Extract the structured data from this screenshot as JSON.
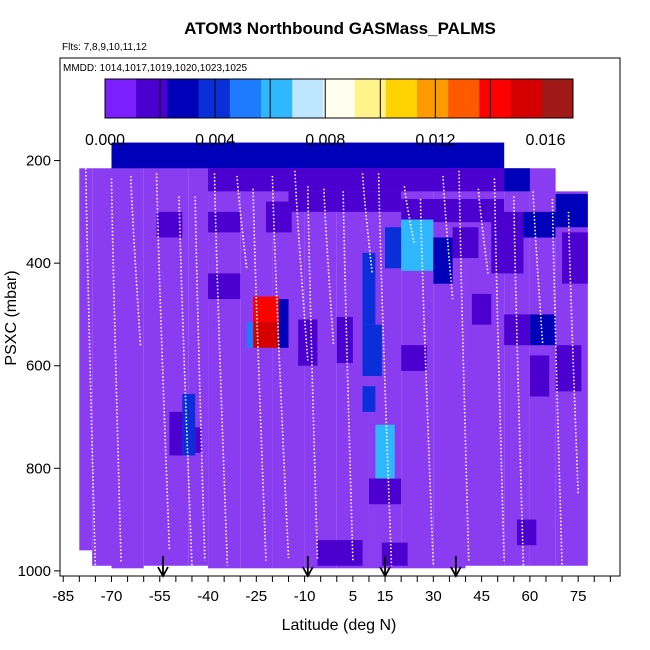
{
  "chart_data": {
    "type": "heatmap",
    "title": "ATOM3 Northbound GASMass_PALMS",
    "flights_note": "Flts: 7,8,9,10,11,12",
    "dates_note": "MMDD: 1014,1017,1019,1020,1023,1025",
    "xlabel": "Latitude (deg N)",
    "ylabel": "PSXC (mbar)",
    "xlim": [
      -86,
      88
    ],
    "ylim_reversed": [
      1010,
      0
    ],
    "x_ticks": [
      "-85",
      "-70",
      "-55",
      "-40",
      "-25",
      "-10",
      "5",
      "15",
      "30",
      "45",
      "60",
      "75"
    ],
    "y_ticks": [
      "200",
      "400",
      "600",
      "800",
      "1000"
    ],
    "colorbar": {
      "range": [
        0,
        0.017
      ],
      "tick_labels": [
        "0.000",
        "0.004",
        "0.008",
        "0.012",
        "0.016"
      ],
      "colors": [
        "#7B1FFF",
        "#4B00D0",
        "#0000B8",
        "#0A2FD8",
        "#1E7BFF",
        "#2FB8FF",
        "#BFE6FF",
        "#FFFFF0",
        "#FFF38A",
        "#FFD200",
        "#FF9A00",
        "#FF5A00",
        "#FF0000",
        "#D40000",
        "#A01818"
      ]
    },
    "low_values_color": "#8A3CF0",
    "arrow_latitudes": [
      -54,
      -9,
      15,
      37
    ],
    "cell_size": {
      "lat_deg": 3.5,
      "pressure_mbar": 25
    },
    "columns": [
      {
        "lat": [
          -80,
          -76
        ],
        "p": [
          215,
          960
        ]
      },
      {
        "lat": [
          -76,
          -70
        ],
        "p": [
          215,
          990
        ]
      },
      {
        "lat": [
          -70,
          -60
        ],
        "p": [
          165,
          995
        ]
      },
      {
        "lat": [
          -60,
          -46
        ],
        "p": [
          165,
          990
        ]
      },
      {
        "lat": [
          -46,
          -40
        ],
        "p": [
          165,
          990
        ]
      },
      {
        "lat": [
          -40,
          -30
        ],
        "p": [
          165,
          995
        ]
      },
      {
        "lat": [
          -30,
          -20
        ],
        "p": [
          165,
          995
        ]
      },
      {
        "lat": [
          -20,
          -10
        ],
        "p": [
          165,
          995
        ]
      },
      {
        "lat": [
          -10,
          0
        ],
        "p": [
          165,
          995
        ]
      },
      {
        "lat": [
          0,
          10
        ],
        "p": [
          165,
          995
        ]
      },
      {
        "lat": [
          10,
          20
        ],
        "p": [
          165,
          995
        ]
      },
      {
        "lat": [
          20,
          30
        ],
        "p": [
          165,
          995
        ]
      },
      {
        "lat": [
          30,
          40
        ],
        "p": [
          165,
          995
        ]
      },
      {
        "lat": [
          40,
          52
        ],
        "p": [
          165,
          990
        ]
      },
      {
        "lat": [
          52,
          60
        ],
        "p": [
          215,
          990
        ]
      },
      {
        "lat": [
          60,
          68
        ],
        "p": [
          215,
          990
        ]
      },
      {
        "lat": [
          68,
          78
        ],
        "p": [
          260,
          990
        ]
      }
    ],
    "features": [
      {
        "lat": [
          -70,
          52
        ],
        "p": [
          165,
          215
        ],
        "value": 0.0025
      },
      {
        "lat": [
          -40,
          52
        ],
        "p": [
          215,
          260
        ],
        "value": 0.0022
      },
      {
        "lat": [
          52,
          60
        ],
        "p": [
          215,
          260
        ],
        "value": 0.0023
      },
      {
        "lat": [
          -15,
          20
        ],
        "p": [
          260,
          300
        ],
        "value": 0.0018
      },
      {
        "lat": [
          20,
          52
        ],
        "p": [
          275,
          320
        ],
        "value": 0.0021
      },
      {
        "lat": [
          68,
          78
        ],
        "p": [
          265,
          330
        ],
        "value": 0.0024
      },
      {
        "lat": [
          58,
          68
        ],
        "p": [
          300,
          350
        ],
        "value": 0.0023
      },
      {
        "lat": [
          -56,
          -48
        ],
        "p": [
          300,
          350
        ],
        "value": 0.0016
      },
      {
        "lat": [
          -40,
          -30
        ],
        "p": [
          300,
          340
        ],
        "value": 0.0014
      },
      {
        "lat": [
          -22,
          -14
        ],
        "p": [
          280,
          340
        ],
        "value": 0.0017
      },
      {
        "lat": [
          20,
          30
        ],
        "p": [
          315,
          415
        ],
        "value": 0.0068
      },
      {
        "lat": [
          15,
          20
        ],
        "p": [
          330,
          410
        ],
        "value": 0.0042
      },
      {
        "lat": [
          8,
          12
        ],
        "p": [
          380,
          520
        ],
        "value": 0.0035
      },
      {
        "lat": [
          30,
          36
        ],
        "p": [
          350,
          440
        ],
        "value": 0.0024
      },
      {
        "lat": [
          36,
          44
        ],
        "p": [
          330,
          390
        ],
        "value": 0.0021
      },
      {
        "lat": [
          48,
          58
        ],
        "p": [
          300,
          420
        ],
        "value": 0.0022
      },
      {
        "lat": [
          -26,
          -18
        ],
        "p": [
          465,
          515
        ],
        "value": 0.0145
      },
      {
        "lat": [
          -26,
          -18
        ],
        "p": [
          515,
          565
        ],
        "value": 0.0158
      },
      {
        "lat": [
          -28,
          -26
        ],
        "p": [
          515,
          565
        ],
        "value": 0.0054
      },
      {
        "lat": [
          -18,
          -15
        ],
        "p": [
          470,
          565
        ],
        "value": 0.0024
      },
      {
        "lat": [
          -12,
          -6
        ],
        "p": [
          510,
          600
        ],
        "value": 0.0022
      },
      {
        "lat": [
          0,
          5
        ],
        "p": [
          505,
          595
        ],
        "value": 0.002
      },
      {
        "lat": [
          8,
          14
        ],
        "p": [
          520,
          620
        ],
        "value": 0.0035
      },
      {
        "lat": [
          8,
          12
        ],
        "p": [
          640,
          690
        ],
        "value": 0.0042
      },
      {
        "lat": [
          12,
          18
        ],
        "p": [
          715,
          820
        ],
        "value": 0.006
      },
      {
        "lat": [
          10,
          20
        ],
        "p": [
          820,
          870
        ],
        "value": 0.0018
      },
      {
        "lat": [
          20,
          28
        ],
        "p": [
          560,
          610
        ],
        "value": 0.0022
      },
      {
        "lat": [
          -48,
          -44
        ],
        "p": [
          655,
          775
        ],
        "value": 0.0044
      },
      {
        "lat": [
          -52,
          -48
        ],
        "p": [
          690,
          775
        ],
        "value": 0.0022
      },
      {
        "lat": [
          -44,
          -42
        ],
        "p": [
          720,
          770
        ],
        "value": 0.0018
      },
      {
        "lat": [
          42,
          48
        ],
        "p": [
          460,
          520
        ],
        "value": 0.0022
      },
      {
        "lat": [
          52,
          60
        ],
        "p": [
          500,
          560
        ],
        "value": 0.0018
      },
      {
        "lat": [
          60,
          68
        ],
        "p": [
          500,
          560
        ],
        "value": 0.0028
      },
      {
        "lat": [
          60,
          66
        ],
        "p": [
          580,
          660
        ],
        "value": 0.002
      },
      {
        "lat": [
          70,
          78
        ],
        "p": [
          340,
          440
        ],
        "value": 0.0022
      },
      {
        "lat": [
          68,
          76
        ],
        "p": [
          560,
          650
        ],
        "value": 0.0016
      },
      {
        "lat": [
          -6,
          8
        ],
        "p": [
          940,
          990
        ],
        "value": 0.002
      },
      {
        "lat": [
          14,
          22
        ],
        "p": [
          945,
          990
        ],
        "value": 0.0014
      },
      {
        "lat": [
          56,
          62
        ],
        "p": [
          900,
          950
        ],
        "value": 0.0013
      },
      {
        "lat": [
          -40,
          -30
        ],
        "p": [
          420,
          470
        ],
        "value": 0.0012
      }
    ],
    "flight_profiles": [
      {
        "lat": [
          -78,
          -75
        ],
        "p": [
          215,
          995
        ]
      },
      {
        "lat": [
          -70,
          -67
        ],
        "p": [
          235,
          985
        ]
      },
      {
        "lat": [
          -64,
          -61
        ],
        "p": [
          230,
          560
        ]
      },
      {
        "lat": [
          -56,
          -52
        ],
        "p": [
          225,
          960
        ]
      },
      {
        "lat": [
          -49,
          -45
        ],
        "p": [
          270,
          990
        ]
      },
      {
        "lat": [
          -44,
          -41
        ],
        "p": [
          270,
          980
        ]
      },
      {
        "lat": [
          -38,
          -34
        ],
        "p": [
          225,
          990
        ]
      },
      {
        "lat": [
          -31,
          -28
        ],
        "p": [
          230,
          410
        ]
      },
      {
        "lat": [
          -26,
          -22
        ],
        "p": [
          255,
          980
        ]
      },
      {
        "lat": [
          -20,
          -15
        ],
        "p": [
          230,
          975
        ]
      },
      {
        "lat": [
          -13,
          -9
        ],
        "p": [
          220,
          590
        ]
      },
      {
        "lat": [
          -9,
          -6
        ],
        "p": [
          250,
          980
        ]
      },
      {
        "lat": [
          -4,
          -1
        ],
        "p": [
          255,
          560
        ]
      },
      {
        "lat": [
          2,
          5
        ],
        "p": [
          260,
          980
        ]
      },
      {
        "lat": [
          8,
          11
        ],
        "p": [
          225,
          420
        ]
      },
      {
        "lat": [
          13,
          17
        ],
        "p": [
          225,
          990
        ]
      },
      {
        "lat": [
          21,
          24
        ],
        "p": [
          250,
          360
        ]
      },
      {
        "lat": [
          26,
          30
        ],
        "p": [
          275,
          990
        ]
      },
      {
        "lat": [
          33,
          36
        ],
        "p": [
          230,
          470
        ]
      },
      {
        "lat": [
          38,
          41
        ],
        "p": [
          220,
          980
        ]
      },
      {
        "lat": [
          44,
          47
        ],
        "p": [
          255,
          420
        ]
      },
      {
        "lat": [
          49,
          52
        ],
        "p": [
          235,
          980
        ]
      },
      {
        "lat": [
          55,
          58
        ],
        "p": [
          270,
          995
        ]
      },
      {
        "lat": [
          61,
          64
        ],
        "p": [
          260,
          560
        ]
      },
      {
        "lat": [
          67,
          70
        ],
        "p": [
          275,
          990
        ]
      },
      {
        "lat": [
          72,
          75
        ],
        "p": [
          300,
          850
        ]
      }
    ]
  }
}
